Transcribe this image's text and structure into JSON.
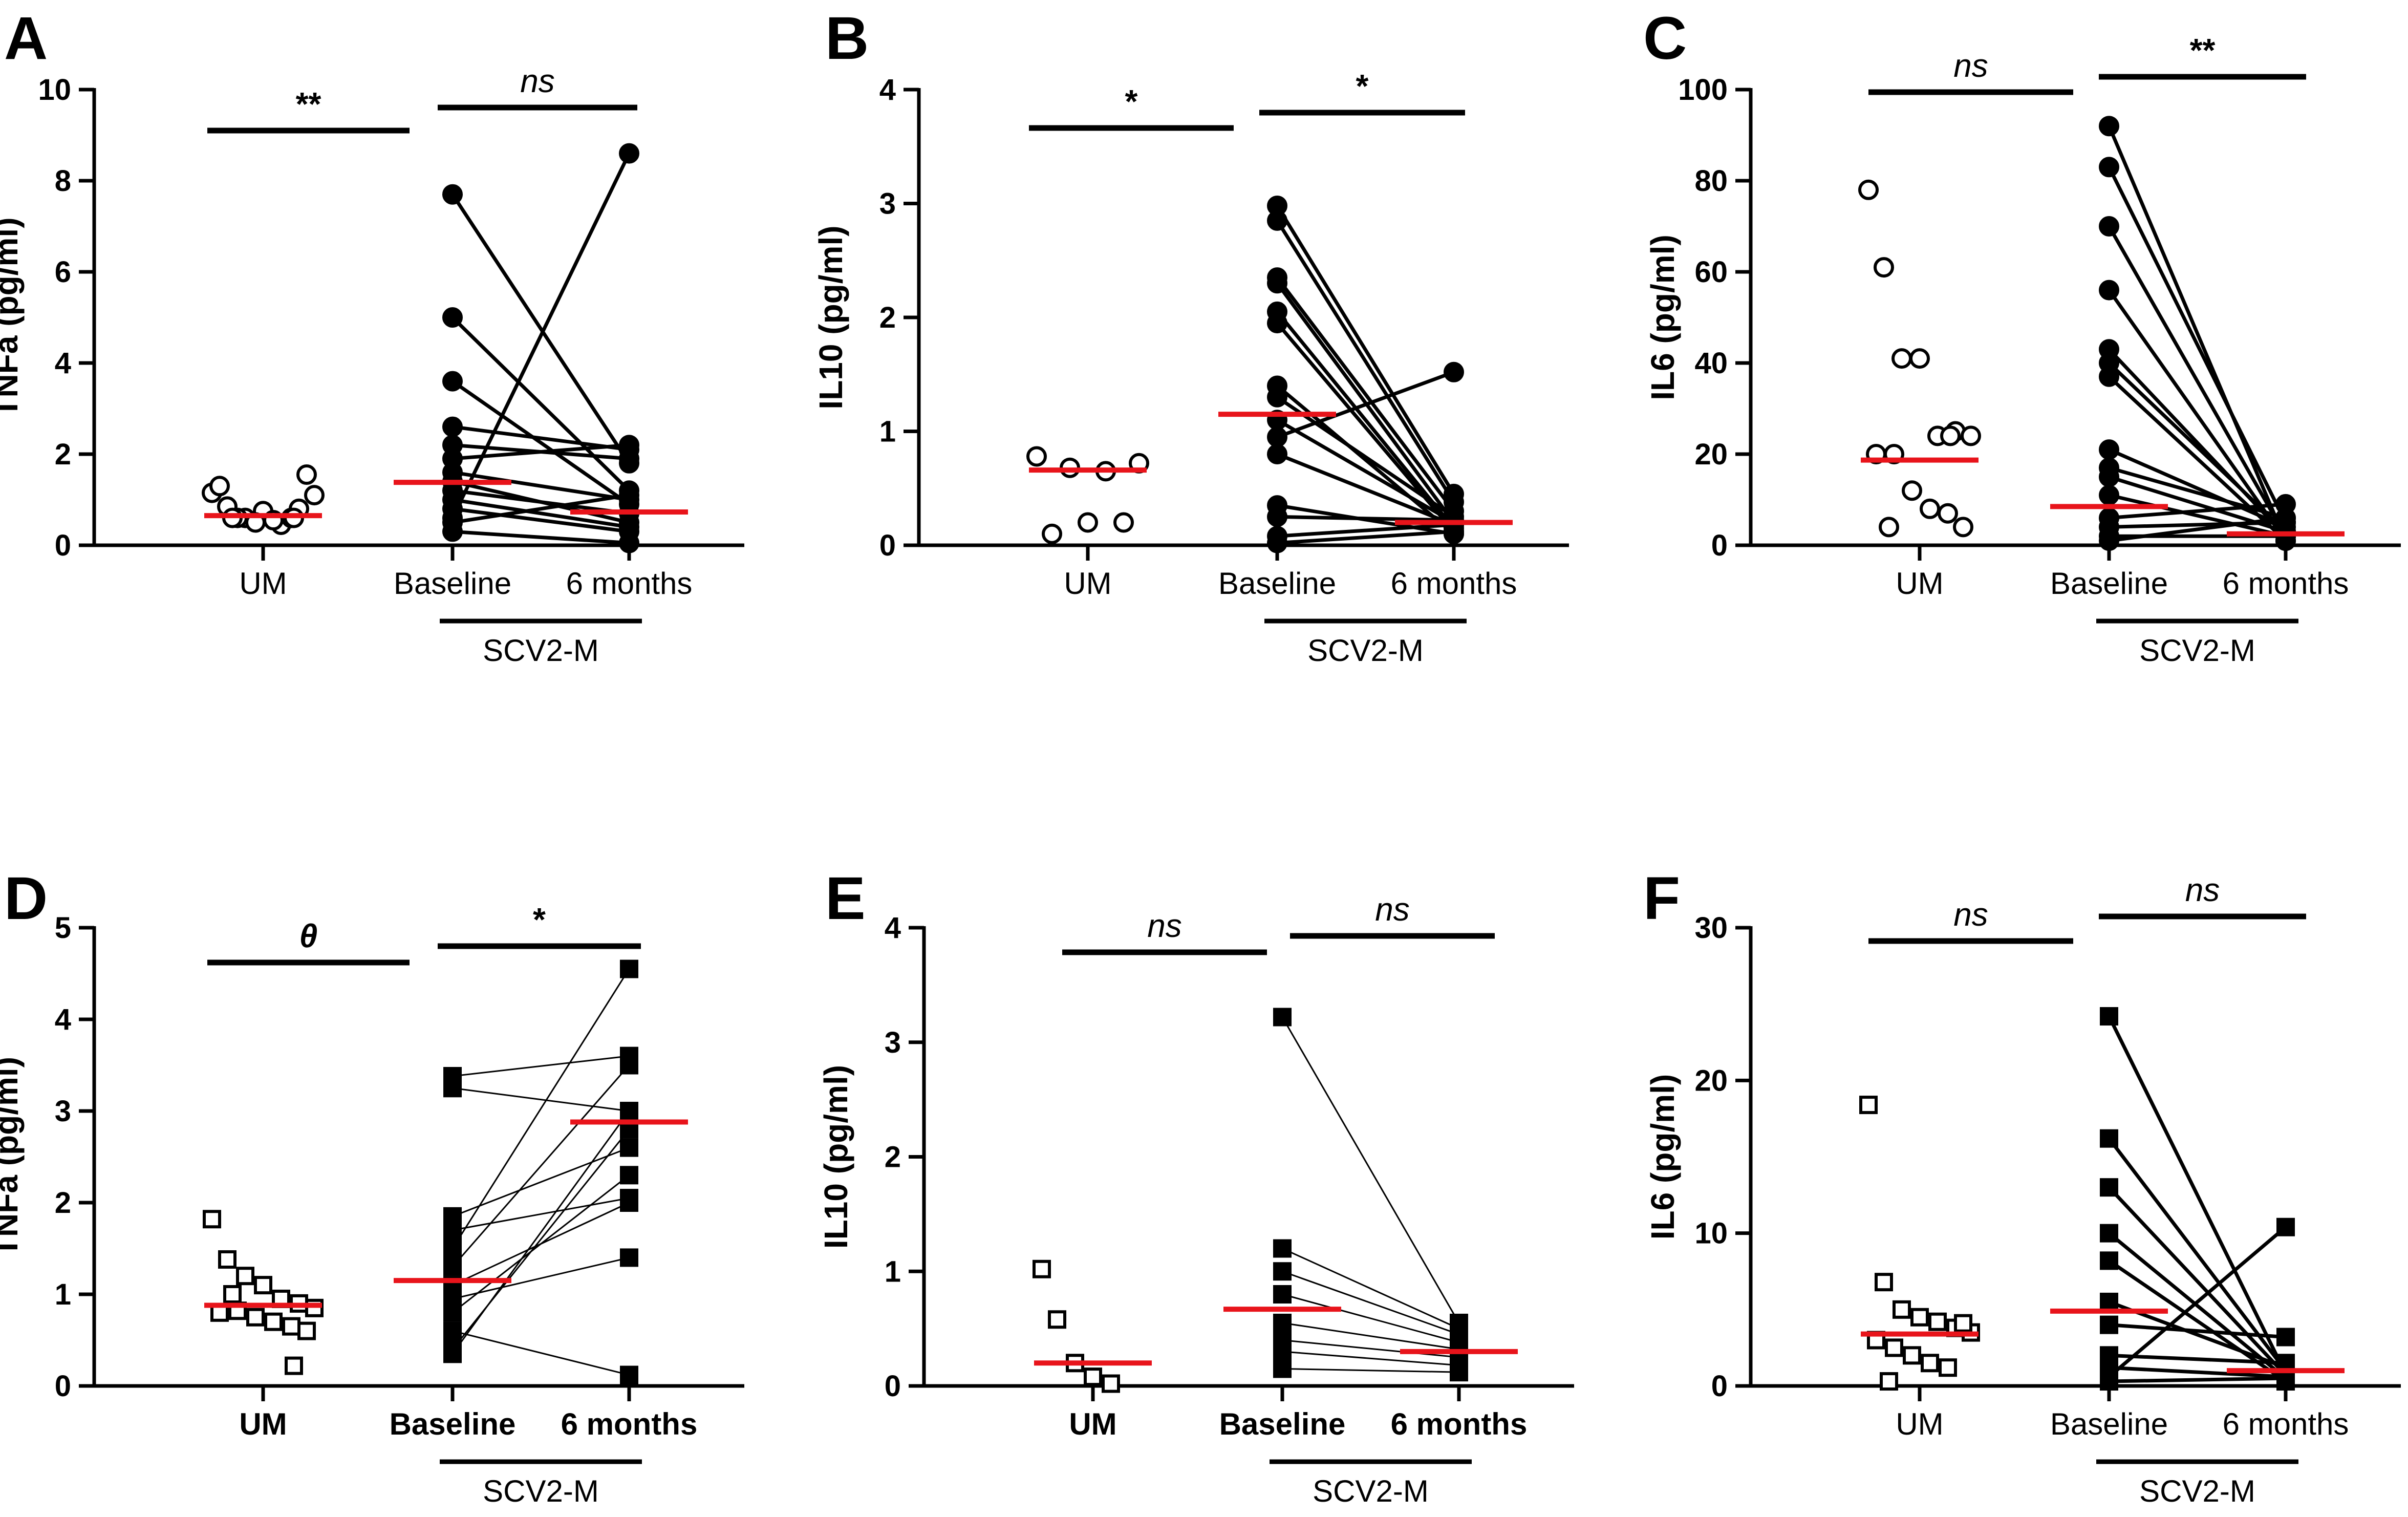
{
  "colors": {
    "ink": "#000000",
    "median": "#e8141b"
  },
  "chart_data": [
    {
      "panel": "A",
      "type": "scatter",
      "ylabel": "TNFa (pg/ml)",
      "ylim": [
        0,
        10
      ],
      "yticks": [
        "0",
        "2",
        "4",
        "6",
        "8",
        "10"
      ],
      "categories": [
        "UM",
        "Baseline",
        "6 months"
      ],
      "bold_categories": false,
      "group_label": "SCV2-M",
      "marker": "circle",
      "thin_lines": false,
      "um": [
        1.15,
        0.85,
        0.6,
        0.75,
        0.45,
        0.8,
        1.1,
        1.3,
        0.6,
        0.5,
        0.55,
        0.6,
        1.55,
        0.6,
        0.6
      ],
      "pairs": [
        [
          7.7,
          1.8
        ],
        [
          5.0,
          1.2
        ],
        [
          3.6,
          0.9
        ],
        [
          2.6,
          2.1
        ],
        [
          2.2,
          1.9
        ],
        [
          1.9,
          2.2
        ],
        [
          1.6,
          1.0
        ],
        [
          1.4,
          0.5
        ],
        [
          1.2,
          0.7
        ],
        [
          1.0,
          0.4
        ],
        [
          0.8,
          0.3
        ],
        [
          0.5,
          1.1
        ],
        [
          0.3,
          0.05
        ],
        [
          0.6,
          8.6
        ]
      ],
      "medians": [
        0.65,
        1.38,
        0.73
      ],
      "brackets": [
        {
          "label": "**",
          "italic": false
        },
        {
          "label": "ns",
          "italic": true
        }
      ]
    },
    {
      "panel": "B",
      "type": "scatter",
      "ylabel": "IL10 (pg/ml)",
      "ylim": [
        0,
        4
      ],
      "yticks": [
        "0",
        "1",
        "2",
        "3",
        "4"
      ],
      "categories": [
        "UM",
        "Baseline",
        "6 months"
      ],
      "bold_categories": false,
      "group_label": "SCV2-M",
      "marker": "circle",
      "thin_lines": false,
      "um": [
        0.78,
        0.1,
        0.68,
        0.2,
        0.65,
        0.2,
        0.72
      ],
      "pairs": [
        [
          2.98,
          0.45
        ],
        [
          2.85,
          0.38
        ],
        [
          2.35,
          0.3
        ],
        [
          2.3,
          0.2
        ],
        [
          2.05,
          0.15
        ],
        [
          1.95,
          0.12
        ],
        [
          1.4,
          0.1
        ],
        [
          1.3,
          0.25
        ],
        [
          1.1,
          0.2
        ],
        [
          0.95,
          1.52
        ],
        [
          0.8,
          0.18
        ],
        [
          0.35,
          0.1
        ],
        [
          0.25,
          0.22
        ],
        [
          0.08,
          0.18
        ],
        [
          0.02,
          0.12
        ]
      ],
      "medians": [
        0.66,
        1.15,
        0.2
      ],
      "brackets": [
        {
          "label": "*",
          "italic": false
        },
        {
          "label": "*",
          "italic": false
        }
      ]
    },
    {
      "panel": "C",
      "type": "scatter",
      "ylabel": "IL6 (pg/ml)",
      "ylim": [
        0,
        100
      ],
      "yticks": [
        "0",
        "20",
        "40",
        "60",
        "80",
        "100"
      ],
      "categories": [
        "UM",
        "Baseline",
        "6 months"
      ],
      "bold_categories": false,
      "group_label": "SCV2-M",
      "marker": "circle",
      "thin_lines": false,
      "um": [
        78,
        61,
        41,
        41,
        24,
        25,
        24,
        20,
        20,
        12,
        8,
        7,
        4,
        4,
        24
      ],
      "pairs": [
        [
          92,
          1
        ],
        [
          83,
          5
        ],
        [
          70,
          2
        ],
        [
          56,
          1
        ],
        [
          43,
          2
        ],
        [
          40,
          3
        ],
        [
          37,
          1
        ],
        [
          21,
          4
        ],
        [
          17,
          6
        ],
        [
          15,
          3
        ],
        [
          11,
          2
        ],
        [
          6,
          9
        ],
        [
          4,
          5
        ],
        [
          2,
          2
        ],
        [
          1,
          6
        ]
      ],
      "medians": [
        18.7,
        8.5,
        2.5
      ],
      "brackets": [
        {
          "label": "ns",
          "italic": true
        },
        {
          "label": "**",
          "italic": false
        }
      ]
    },
    {
      "panel": "D",
      "type": "scatter",
      "ylabel": "TNFa (pg/ml)",
      "ylim": [
        0,
        5
      ],
      "yticks": [
        "0",
        "1",
        "2",
        "3",
        "4",
        "5"
      ],
      "categories": [
        "UM",
        "Baseline",
        "6 months"
      ],
      "bold_categories": true,
      "group_label": "SCV2-M",
      "marker": "square",
      "thin_lines": true,
      "um": [
        1.82,
        1.38,
        1.2,
        1.1,
        0.95,
        0.9,
        0.85,
        0.8,
        0.82,
        0.75,
        0.7,
        0.65,
        0.6,
        1.0,
        0.22
      ],
      "pairs": [
        [
          3.38,
          3.6
        ],
        [
          3.25,
          3.0
        ],
        [
          1.85,
          2.6
        ],
        [
          1.7,
          2.05
        ],
        [
          1.5,
          4.55
        ],
        [
          1.3,
          3.5
        ],
        [
          1.1,
          2.0
        ],
        [
          0.95,
          1.4
        ],
        [
          0.8,
          2.3
        ],
        [
          0.6,
          0.12
        ],
        [
          0.4,
          2.8
        ],
        [
          0.35,
          3.0
        ]
      ],
      "medians": [
        0.88,
        1.15,
        2.88
      ],
      "brackets": [
        {
          "label": "θ",
          "italic": true
        },
        {
          "label": "*",
          "italic": false
        }
      ]
    },
    {
      "panel": "E",
      "type": "scatter",
      "ylabel": "IL10 (pg/ml)",
      "ylim": [
        0,
        4
      ],
      "yticks": [
        "0",
        "1",
        "2",
        "3",
        "4"
      ],
      "categories": [
        "UM",
        "Baseline",
        "6 months"
      ],
      "bold_categories": true,
      "group_label": "SCV2-M",
      "marker": "square",
      "thin_lines": true,
      "um": [
        1.02,
        0.58,
        0.2,
        0.08,
        0.02
      ],
      "pairs": [
        [
          3.22,
          0.55
        ],
        [
          1.2,
          0.5
        ],
        [
          1.0,
          0.45
        ],
        [
          0.8,
          0.38
        ],
        [
          0.55,
          0.32
        ],
        [
          0.4,
          0.25
        ],
        [
          0.3,
          0.18
        ],
        [
          0.15,
          0.12
        ]
      ],
      "medians": [
        0.2,
        0.67,
        0.3
      ],
      "brackets": [
        {
          "label": "ns",
          "italic": true
        },
        {
          "label": "ns",
          "italic": true
        }
      ]
    },
    {
      "panel": "F",
      "type": "scatter",
      "ylabel": "IL6 (pg/ml)",
      "ylim": [
        0,
        30
      ],
      "yticks": [
        "0",
        "10",
        "20",
        "30"
      ],
      "categories": [
        "UM",
        "Baseline",
        "6 months"
      ],
      "bold_categories": false,
      "group_label": "SCV2-M",
      "marker": "square",
      "thin_lines": false,
      "um": [
        18.4,
        6.8,
        5.0,
        4.5,
        4.2,
        3.8,
        3.5,
        3.0,
        2.5,
        2.0,
        1.5,
        1.2,
        4.1,
        0.3
      ],
      "pairs": [
        [
          24.2,
          0.8
        ],
        [
          16.2,
          1.0
        ],
        [
          13.0,
          0.7
        ],
        [
          10.0,
          0.5
        ],
        [
          8.2,
          0.3
        ],
        [
          5.5,
          1.2
        ],
        [
          4.0,
          3.2
        ],
        [
          2.0,
          1.5
        ],
        [
          1.2,
          0.6
        ],
        [
          0.6,
          10.4
        ],
        [
          0.3,
          0.5
        ]
      ],
      "medians": [
        3.4,
        4.9,
        1.0
      ],
      "brackets": [
        {
          "label": "ns",
          "italic": true
        },
        {
          "label": "ns",
          "italic": true
        }
      ]
    }
  ]
}
